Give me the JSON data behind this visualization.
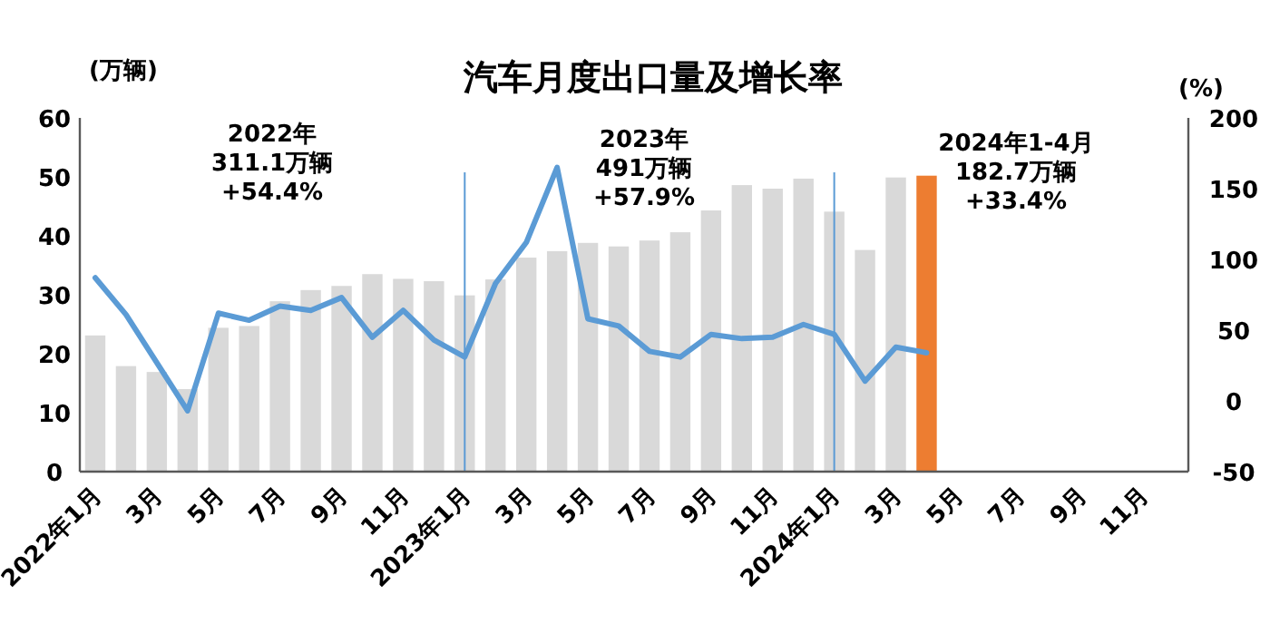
{
  "chart_data": {
    "type": "bar",
    "title": "汽车月度出口量及增长率",
    "ylabel": "(万辆)",
    "y2label": "(%)",
    "categories": [
      "2022年1月",
      null,
      "3月",
      null,
      "5月",
      null,
      "7月",
      null,
      "9月",
      null,
      "11月",
      null,
      "2023年1月",
      null,
      "3月",
      null,
      "5月",
      null,
      "7月",
      null,
      "9月",
      null,
      "11月",
      null,
      "2024年1月",
      null,
      "3月",
      null,
      "5月",
      null,
      "7月",
      null,
      "9月",
      null,
      "11月",
      null
    ],
    "ylim": [
      0,
      60
    ],
    "yticks": [
      0,
      10,
      20,
      30,
      40,
      50,
      60
    ],
    "y2lim": [
      -50,
      200
    ],
    "y2ticks": [
      -50,
      0,
      50,
      100,
      150,
      200
    ],
    "grid": false,
    "series": [
      {
        "colors": [
          "#d9d9d9",
          "#d9d9d9",
          "#d9d9d9",
          "#d9d9d9",
          "#d9d9d9",
          "#d9d9d9",
          "#d9d9d9",
          "#d9d9d9",
          "#d9d9d9",
          "#d9d9d9",
          "#d9d9d9",
          "#d9d9d9",
          "#d9d9d9",
          "#d9d9d9",
          "#d9d9d9",
          "#d9d9d9",
          "#d9d9d9",
          "#d9d9d9",
          "#d9d9d9",
          "#d9d9d9",
          "#d9d9d9",
          "#d9d9d9",
          "#d9d9d9",
          "#d9d9d9",
          "#d9d9d9",
          "#d9d9d9",
          "#d9d9d9",
          "#ed7d31",
          null,
          null,
          null,
          null,
          null,
          null,
          null,
          null
        ],
        "values": [
          23.1,
          17.9,
          16.9,
          14.0,
          24.4,
          24.7,
          28.9,
          30.8,
          31.5,
          33.5,
          32.7,
          32.3,
          29.9,
          32.6,
          36.3,
          37.4,
          38.8,
          38.2,
          39.2,
          40.6,
          44.3,
          48.6,
          48.0,
          49.7,
          44.1,
          37.6,
          49.9,
          50.2,
          null,
          null,
          null,
          null,
          null,
          null,
          null,
          null
        ]
      },
      {
        "type": "line",
        "axis": "y2",
        "color": "#5b9bd5",
        "marker": "none",
        "line_style": "solid",
        "values": [
          87,
          61,
          27,
          -7,
          62,
          57,
          67,
          64,
          73,
          45,
          64,
          43,
          31,
          83,
          112,
          165,
          58,
          53,
          35,
          31,
          47,
          44,
          45,
          54,
          47,
          14,
          38,
          34,
          null,
          null,
          null,
          null,
          null,
          null,
          null,
          null
        ]
      }
    ],
    "ref_lines": [
      {
        "axis": "x",
        "value": "2023年1月",
        "color": "#5b9bd5"
      },
      {
        "axis": "x",
        "value": "2024年1月",
        "color": "#5b9bd5"
      }
    ],
    "annotations": [
      "2022年\n311.1万辆\n+54.4%",
      "2023年\n491万辆\n+57.9%",
      "2024年1-4月\n182.7万辆\n+33.4%"
    ]
  }
}
